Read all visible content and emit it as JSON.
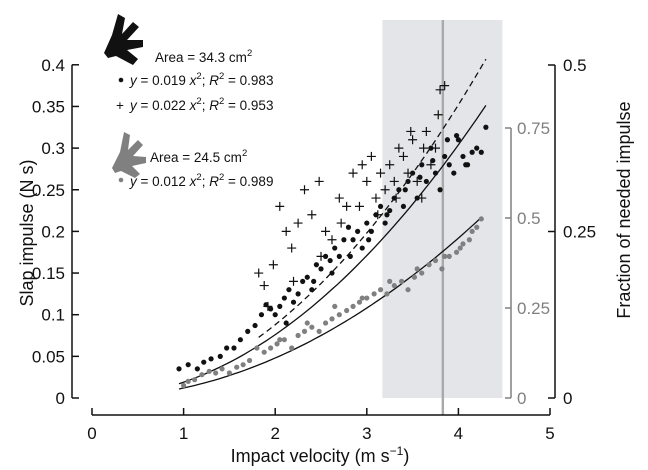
{
  "colors": {
    "primary": "#111111",
    "secondary": "#808080",
    "shade": "#e3e5e8",
    "vline": "#a9a9a9"
  },
  "chart_data": {
    "type": "scatter",
    "xlabel": "Impact velocity (m s−1)",
    "ylabel": "Slap impulse (N s)",
    "y2label": "Fraction of needed impulse",
    "xlim": [
      0,
      5
    ],
    "ylim": [
      0,
      0.4
    ],
    "x_ticks": [
      "0",
      "1",
      "2",
      "3",
      "4",
      "5"
    ],
    "y_ticks": [
      "0",
      "0.05",
      "0.1",
      "0.15",
      "0.2",
      "0.25",
      "0.3",
      "0.35",
      "0.4"
    ],
    "right_axis_grey": {
      "range": [
        0,
        0.75
      ],
      "ticks": [
        "0",
        "0.25",
        "0.5",
        "0.75"
      ],
      "color": "#808080"
    },
    "right_axis_black": {
      "range": [
        0,
        0.5
      ],
      "ticks": [
        "0",
        "0.25",
        "0.5"
      ],
      "color": "#111111"
    },
    "shaded_region": {
      "x": [
        3.17,
        4.48
      ],
      "color": "#e3e5e8"
    },
    "vertical_line": {
      "x": 3.83,
      "color": "#a9a9a9"
    },
    "grid": false,
    "annotations": {
      "large": {
        "area_label": "Area = 34.3 cm²",
        "eq_dot": "y = 0.019 x²;  R² = 0.983",
        "eq_plus": "y = 0.022 x²;  R² = 0.953"
      },
      "small": {
        "area_label": "Area = 24.5 cm²",
        "eq_dot": "y = 0.012 x²; R² = 0.989"
      }
    },
    "series": [
      {
        "marker": "dot",
        "color": "#111111",
        "fit_coefficient": 0.019,
        "fit_range": [
          0.95,
          4.3
        ],
        "fit_style": "solid",
        "x": [
          0.95,
          1.05,
          1.15,
          1.22,
          1.3,
          1.4,
          1.47,
          1.55,
          1.62,
          1.7,
          1.78,
          1.85,
          1.9,
          1.95,
          2.0,
          2.05,
          2.1,
          2.15,
          2.2,
          2.25,
          2.3,
          2.35,
          2.4,
          2.45,
          2.5,
          2.55,
          2.6,
          2.65,
          2.7,
          2.75,
          2.8,
          2.85,
          2.9,
          2.95,
          3.0,
          3.05,
          3.1,
          3.15,
          3.2,
          3.25,
          3.3,
          3.35,
          3.4,
          3.45,
          3.5,
          3.55,
          3.6,
          3.65,
          3.7,
          3.75,
          3.8,
          3.85,
          3.9,
          3.95,
          4.0,
          4.05,
          4.1,
          4.15,
          4.2,
          4.25,
          4.3,
          2.12,
          2.42,
          2.62,
          2.82,
          3.02,
          3.22,
          3.42,
          3.58,
          3.72,
          3.88,
          3.98,
          4.08
        ],
        "y": [
          0.035,
          0.04,
          0.035,
          0.043,
          0.047,
          0.05,
          0.06,
          0.06,
          0.07,
          0.08,
          0.087,
          0.1,
          0.112,
          0.107,
          0.1,
          0.11,
          0.12,
          0.13,
          0.115,
          0.125,
          0.14,
          0.145,
          0.13,
          0.16,
          0.155,
          0.17,
          0.165,
          0.18,
          0.17,
          0.19,
          0.205,
          0.19,
          0.2,
          0.18,
          0.21,
          0.2,
          0.22,
          0.23,
          0.21,
          0.225,
          0.24,
          0.25,
          0.23,
          0.26,
          0.27,
          0.24,
          0.28,
          0.26,
          0.3,
          0.27,
          0.25,
          0.29,
          0.28,
          0.27,
          0.31,
          0.29,
          0.28,
          0.295,
          0.3,
          0.295,
          0.325,
          0.09,
          0.14,
          0.15,
          0.17,
          0.19,
          0.22,
          0.25,
          0.265,
          0.285,
          0.31,
          0.315,
          0.28
        ]
      },
      {
        "marker": "plus",
        "color": "#111111",
        "fit_coefficient": 0.022,
        "fit_range": [
          1.82,
          4.3
        ],
        "fit_style": "dashed",
        "x": [
          1.82,
          1.88,
          1.92,
          1.98,
          2.05,
          2.12,
          2.18,
          2.25,
          2.32,
          2.4,
          2.48,
          2.55,
          2.62,
          2.7,
          2.78,
          2.85,
          2.92,
          3.0,
          3.05,
          3.1,
          3.15,
          3.2,
          3.25,
          3.3,
          3.35,
          3.4,
          3.45,
          3.5,
          3.55,
          3.6,
          3.65,
          3.7,
          3.75,
          3.8,
          3.85,
          2.2,
          2.5,
          2.72,
          2.95,
          3.12,
          3.32,
          3.48,
          3.62,
          3.78
        ],
        "y": [
          0.15,
          0.135,
          0.11,
          0.16,
          0.23,
          0.2,
          0.18,
          0.21,
          0.25,
          0.22,
          0.26,
          0.2,
          0.19,
          0.24,
          0.23,
          0.27,
          0.23,
          0.26,
          0.29,
          0.24,
          0.27,
          0.25,
          0.28,
          0.26,
          0.3,
          0.29,
          0.27,
          0.31,
          0.26,
          0.24,
          0.32,
          0.28,
          0.3,
          0.37,
          0.375,
          0.14,
          0.17,
          0.21,
          0.28,
          0.22,
          0.24,
          0.32,
          0.3,
          0.34
        ]
      },
      {
        "marker": "dot",
        "color": "#808080",
        "fit_coefficient": 0.012,
        "fit_range": [
          0.95,
          4.25
        ],
        "fit_style": "solid",
        "x": [
          1.0,
          1.05,
          1.12,
          1.2,
          1.28,
          1.35,
          1.42,
          1.5,
          1.58,
          1.65,
          1.72,
          1.8,
          1.88,
          1.95,
          2.02,
          2.1,
          2.18,
          2.25,
          2.32,
          2.4,
          2.48,
          2.55,
          2.62,
          2.7,
          2.78,
          2.85,
          2.92,
          3.0,
          3.08,
          3.15,
          3.22,
          3.3,
          3.38,
          3.45,
          3.52,
          3.6,
          3.68,
          3.75,
          3.82,
          3.9,
          3.98,
          4.05,
          4.12,
          4.2,
          4.25,
          2.05,
          2.35,
          2.65,
          2.95,
          3.25,
          3.55,
          3.85,
          4.02,
          4.15
        ],
        "y": [
          0.015,
          0.02,
          0.022,
          0.028,
          0.032,
          0.03,
          0.035,
          0.03,
          0.037,
          0.04,
          0.045,
          0.06,
          0.055,
          0.06,
          0.065,
          0.07,
          0.06,
          0.075,
          0.08,
          0.085,
          0.08,
          0.09,
          0.095,
          0.1,
          0.105,
          0.11,
          0.115,
          0.12,
          0.125,
          0.13,
          0.125,
          0.135,
          0.14,
          0.13,
          0.145,
          0.15,
          0.16,
          0.165,
          0.155,
          0.17,
          0.175,
          0.185,
          0.19,
          0.205,
          0.215,
          0.07,
          0.09,
          0.11,
          0.12,
          0.14,
          0.155,
          0.17,
          0.18,
          0.2
        ]
      }
    ]
  }
}
